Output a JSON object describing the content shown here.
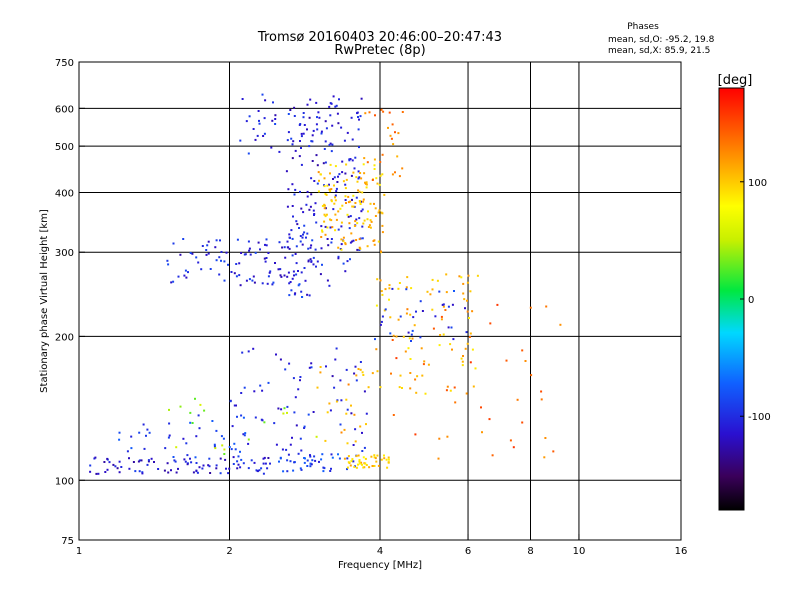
{
  "header": {
    "title_line1": "Tromsø 20160403 20:46:00–20:47:43",
    "title_line2": "RwPretec (8p)"
  },
  "stats": {
    "heading": "Phases",
    "line1": "mean, sd,O: -95.2, 19.8",
    "line2": "mean, sd,X: 85.9, 21.5"
  },
  "colorbar": {
    "label": "[deg]",
    "ticks": [
      {
        "value": 100,
        "label": "100"
      },
      {
        "value": 0,
        "label": "0"
      },
      {
        "value": -100,
        "label": "-100"
      }
    ],
    "range": [
      -180,
      180
    ]
  },
  "chart_data": {
    "type": "scatter",
    "title": "Tromsø 20160403 20:46:00–20:47:43",
    "subtitle": "RwPretec (8p)",
    "xlabel": "Frequency [MHz]",
    "ylabel": "Stationary phase Virtual Height [km]",
    "x_scale": "log",
    "y_scale": "log",
    "xlim": [
      1,
      16
    ],
    "ylim": [
      75,
      750
    ],
    "x_ticks": [
      1,
      2,
      4,
      6,
      8,
      10,
      16
    ],
    "x_tick_labels": [
      "1",
      "2",
      "4",
      "6",
      "8",
      "10",
      "16"
    ],
    "x_gridlines": [
      2,
      4,
      6,
      8,
      10
    ],
    "y_ticks": [
      75,
      100,
      200,
      300,
      400,
      500,
      600,
      750
    ],
    "y_tick_labels": [
      "75",
      "100",
      "200",
      "300",
      "400",
      "500",
      "600",
      "750"
    ],
    "y_gridlines": [
      100,
      200,
      300,
      400,
      500,
      600
    ],
    "color_variable": "phase [deg]",
    "groups": [
      {
        "x_range": [
          1.05,
          2.5
        ],
        "y_range": [
          103,
          112
        ],
        "phase": -110,
        "count": 90
      },
      {
        "x_range": [
          2.5,
          3.6
        ],
        "y_range": [
          104,
          114
        ],
        "phase": -90,
        "count": 45
      },
      {
        "x_range": [
          3.4,
          4.2
        ],
        "y_range": [
          106,
          113
        ],
        "phase": 100,
        "count": 45
      },
      {
        "x_range": [
          1.2,
          2.2
        ],
        "y_range": [
          110,
          138
        ],
        "phase": -95,
        "count": 45
      },
      {
        "x_range": [
          1.5,
          3.3
        ],
        "y_range": [
          112,
          150
        ],
        "phase": 40,
        "count": 18
      },
      {
        "x_range": [
          2.0,
          3.8
        ],
        "y_range": [
          115,
          190
        ],
        "phase": -105,
        "count": 70
      },
      {
        "x_range": [
          3.0,
          4.0
        ],
        "y_range": [
          118,
          175
        ],
        "phase": 110,
        "count": 25
      },
      {
        "x_range": [
          3.9,
          6.3
        ],
        "y_range": [
          150,
          270
        ],
        "phase": 105,
        "count": 80
      },
      {
        "x_range": [
          3.9,
          6.0
        ],
        "y_range": [
          195,
          255
        ],
        "phase": -100,
        "count": 30
      },
      {
        "x_range": [
          4.2,
          9.5
        ],
        "y_range": [
          110,
          240
        ],
        "phase": 140,
        "count": 45
      },
      {
        "x_range": [
          1.5,
          3.5
        ],
        "y_range": [
          255,
          320
        ],
        "phase": -105,
        "count": 120
      },
      {
        "x_range": [
          2.6,
          3.7
        ],
        "y_range": [
          300,
          640
        ],
        "phase": -110,
        "count": 160
      },
      {
        "x_range": [
          2.1,
          3.0
        ],
        "y_range": [
          480,
          650
        ],
        "phase": -105,
        "count": 40
      },
      {
        "x_range": [
          3.0,
          4.1
        ],
        "y_range": [
          300,
          460
        ],
        "phase": 105,
        "count": 130
      },
      {
        "x_range": [
          3.7,
          4.5
        ],
        "y_range": [
          420,
          620
        ],
        "phase": 130,
        "count": 25
      },
      {
        "x_range": [
          2.6,
          2.9
        ],
        "y_range": [
          240,
          275
        ],
        "phase": -100,
        "count": 20
      }
    ]
  }
}
